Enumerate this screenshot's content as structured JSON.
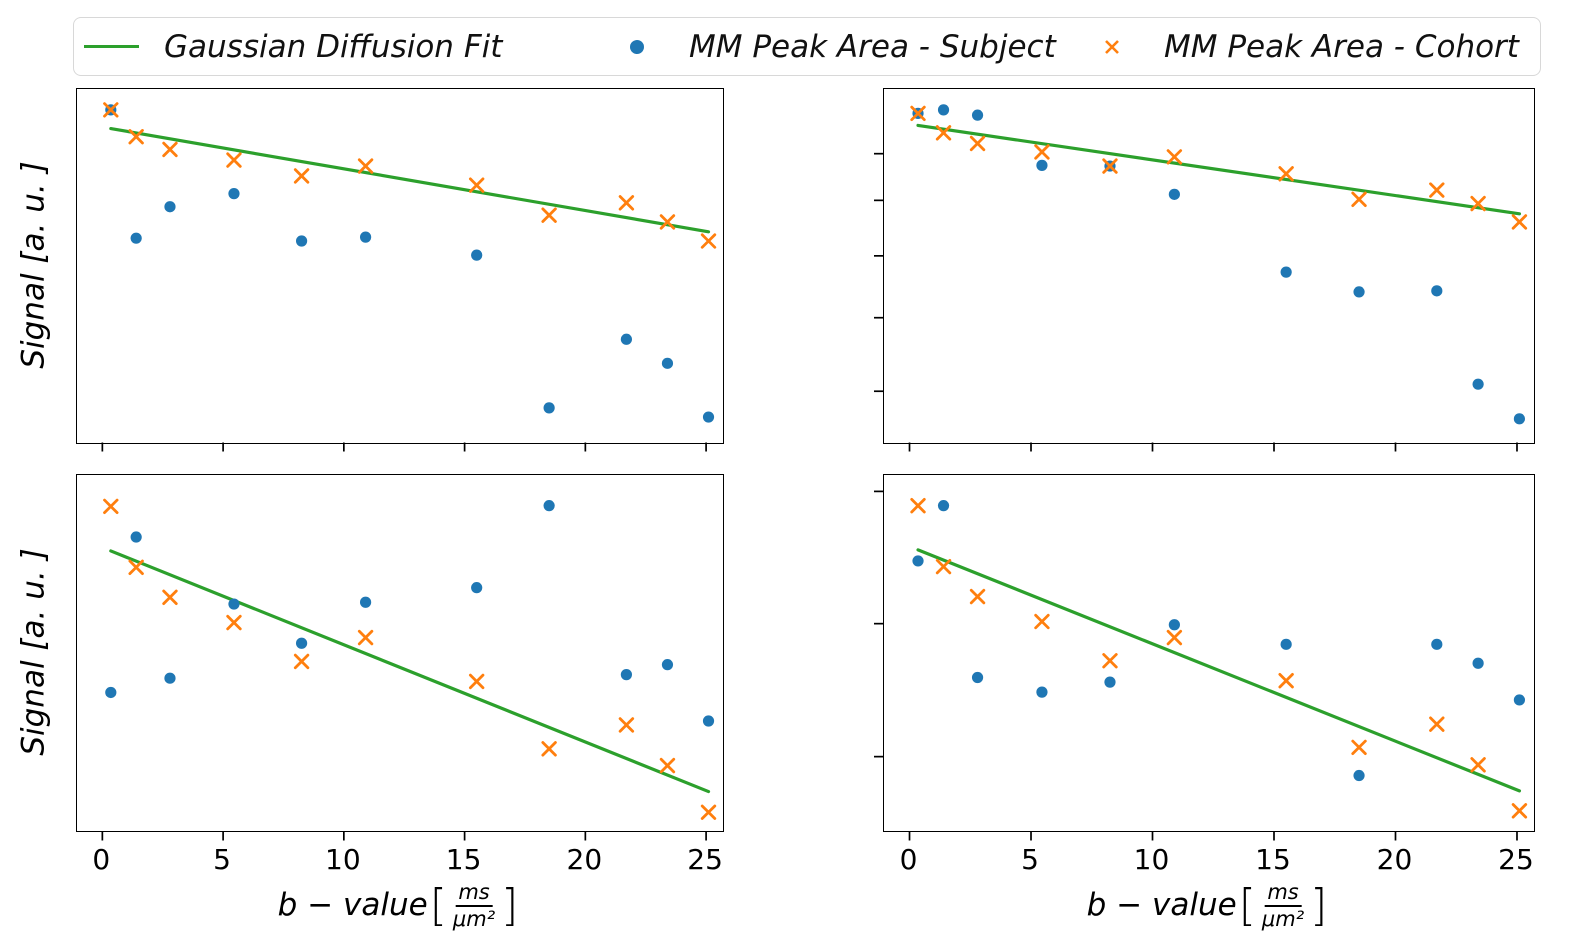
{
  "figure": {
    "background": "#ffffff"
  },
  "colors": {
    "subject_blue": "#1f77b4",
    "cohort_orange": "#ff7f0e",
    "fit_green": "#2ca02c",
    "spine_black": "#000000",
    "legend_border": "#d8d8d8"
  },
  "legend": {
    "items": [
      {
        "label": "Gaussian Diffusion Fit",
        "marker": "line",
        "color": "#2ca02c"
      },
      {
        "label": "MM Peak Area - Subject",
        "marker": "dot",
        "color": "#1f77b4"
      },
      {
        "label": "MM Peak Area - Cohort",
        "marker": "x",
        "color": "#ff7f0e"
      }
    ]
  },
  "axes": {
    "x_tick_values": [
      0,
      5,
      10,
      15,
      20,
      25
    ],
    "x_tick_labels": [
      "0",
      "5",
      "10",
      "15",
      "20",
      "25"
    ],
    "xlim": [
      -1.05,
      25.7
    ],
    "x_axis_label": {
      "prefix": "b − value ",
      "open_bracket": "[",
      "frac_numerator": "ms",
      "frac_denominator": "μm²",
      "close_bracket": "]"
    },
    "y_axis_label": "Signal [a. u. ]",
    "y_units_note": "y-axis unlabeled (arbitrary units); point values below are fraction of axis height from bottom spine"
  },
  "chart_data": [
    {
      "id": "top-left",
      "type": "scatter",
      "title": "",
      "b_values": [
        0.35,
        1.4,
        2.8,
        5.45,
        8.25,
        10.9,
        15.5,
        18.5,
        21.7,
        23.4,
        25.1
      ],
      "series": [
        {
          "name": "MM Peak Area - Subject",
          "marker": "dot",
          "color": "#1f77b4",
          "y": [
            0.941,
            0.578,
            0.667,
            0.704,
            0.57,
            0.581,
            0.53,
            0.098,
            0.292,
            0.224,
            0.072
          ]
        },
        {
          "name": "MM Peak Area - Cohort",
          "marker": "x",
          "color": "#ff7f0e",
          "y": [
            0.941,
            0.865,
            0.829,
            0.799,
            0.754,
            0.782,
            0.728,
            0.643,
            0.678,
            0.624,
            0.57
          ]
        }
      ],
      "fit_line": {
        "name": "Gaussian Diffusion Fit",
        "color": "#2ca02c",
        "b": [
          0.35,
          25.1
        ],
        "y": [
          0.888,
          0.596
        ]
      },
      "y_ticks_fraction_from_top": []
    },
    {
      "id": "top-right",
      "type": "scatter",
      "title": "",
      "b_values": [
        0.35,
        1.4,
        2.8,
        5.45,
        8.25,
        10.9,
        15.5,
        18.5,
        21.7,
        23.4,
        25.1
      ],
      "series": [
        {
          "name": "MM Peak Area - Subject",
          "marker": "dot",
          "color": "#1f77b4",
          "y": [
            0.931,
            0.941,
            0.926,
            0.784,
            0.782,
            0.702,
            0.482,
            0.426,
            0.429,
            0.165,
            0.067
          ]
        },
        {
          "name": "MM Peak Area - Cohort",
          "marker": "x",
          "color": "#ff7f0e",
          "y": [
            0.931,
            0.876,
            0.846,
            0.822,
            0.782,
            0.808,
            0.76,
            0.688,
            0.714,
            0.676,
            0.624
          ]
        }
      ],
      "fit_line": {
        "name": "Gaussian Diffusion Fit",
        "color": "#2ca02c",
        "b": [
          0.35,
          25.1
        ],
        "y": [
          0.897,
          0.647
        ]
      },
      "y_ticks_fraction_from_top": [
        0.183,
        0.315,
        0.472,
        0.647,
        0.855
      ]
    },
    {
      "id": "bottom-left",
      "type": "scatter",
      "title": "",
      "b_values": [
        0.35,
        1.4,
        2.8,
        5.45,
        8.25,
        10.9,
        15.5,
        18.5,
        21.7,
        23.4,
        25.1
      ],
      "series": [
        {
          "name": "MM Peak Area - Subject",
          "marker": "dot",
          "color": "#1f77b4",
          "y": [
            0.39,
            0.826,
            0.43,
            0.638,
            0.528,
            0.643,
            0.684,
            0.914,
            0.44,
            0.468,
            0.31
          ]
        },
        {
          "name": "MM Peak Area - Cohort",
          "marker": "x",
          "color": "#ff7f0e",
          "y": [
            0.912,
            0.741,
            0.657,
            0.586,
            0.477,
            0.544,
            0.421,
            0.232,
            0.299,
            0.185,
            0.054
          ]
        }
      ],
      "fit_line": {
        "name": "Gaussian Diffusion Fit",
        "color": "#2ca02c",
        "b": [
          0.35,
          25.1
        ],
        "y": [
          0.787,
          0.112
        ]
      },
      "y_ticks_fraction_from_top": []
    },
    {
      "id": "bottom-right",
      "type": "scatter",
      "title": "",
      "b_values": [
        0.35,
        1.4,
        2.8,
        5.45,
        8.25,
        10.9,
        15.5,
        18.5,
        21.7,
        23.4,
        25.1
      ],
      "series": [
        {
          "name": "MM Peak Area - Subject",
          "marker": "dot",
          "color": "#1f77b4",
          "y": [
            0.759,
            0.914,
            0.432,
            0.391,
            0.419,
            0.58,
            0.525,
            0.157,
            0.525,
            0.472,
            0.369
          ]
        },
        {
          "name": "MM Peak Area - Cohort",
          "marker": "x",
          "color": "#ff7f0e",
          "y": [
            0.914,
            0.743,
            0.659,
            0.589,
            0.479,
            0.544,
            0.423,
            0.236,
            0.301,
            0.187,
            0.058
          ]
        }
      ],
      "fit_line": {
        "name": "Gaussian Diffusion Fit",
        "color": "#2ca02c",
        "b": [
          0.35,
          25.1
        ],
        "y": [
          0.79,
          0.114
        ]
      },
      "y_ticks_fraction_from_top": [
        0.046,
        0.417,
        0.79
      ]
    }
  ]
}
